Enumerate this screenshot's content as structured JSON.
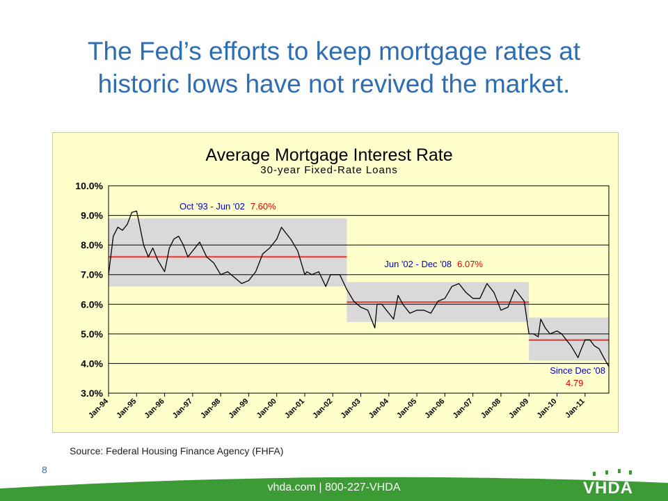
{
  "slide": {
    "title_line1": "The Fed’s efforts to keep mortgage rates at",
    "title_line2": "historic lows have not revived the market.",
    "source": "Source:  Federal Housing Finance Agency (FHFA)",
    "page_number": "8",
    "footer": "vhda.com | 800-227-VHDA",
    "logo_text": "VHDA",
    "colors": {
      "title": "#2e6db4",
      "footer_green": "#3d9b35",
      "chart_bg": "#ffffcc",
      "avg_line": "#e0504a",
      "band": "#d9d9d9",
      "series": "#000000",
      "label_blue": "#0000cc",
      "label_red": "#e00000"
    }
  },
  "chart_data": {
    "type": "line",
    "title": "Average Mortgage Interest Rate",
    "subtitle": "30-year Fixed-Rate Loans",
    "ylim": [
      3.0,
      10.0
    ],
    "y_ticks": [
      "3.0%",
      "4.0%",
      "5.0%",
      "6.0%",
      "7.0%",
      "8.0%",
      "9.0%",
      "10.0%"
    ],
    "y_tick_values": [
      3,
      4,
      5,
      6,
      7,
      8,
      9,
      10
    ],
    "x_ticks": [
      "Jan-94",
      "Jan-95",
      "Jan-96",
      "Jan-97",
      "Jan-98",
      "Jan-99",
      "Jan-00",
      "Jan-01",
      "Jan-02",
      "Jan-03",
      "Jan-04",
      "Jan-05",
      "Jan-06",
      "Jan-07",
      "Jan-08",
      "Jan-09",
      "Jan-10",
      "Jan-11"
    ],
    "x_tick_values": [
      1994,
      1995,
      1996,
      1997,
      1998,
      1999,
      2000,
      2001,
      2002,
      2003,
      2004,
      2005,
      2006,
      2007,
      2008,
      2009,
      2010,
      2011
    ],
    "xlim": [
      1994.0,
      2011.85
    ],
    "grid": "horizontal",
    "series": [
      {
        "x": [
          1994.0,
          1994.17,
          1994.33,
          1994.5,
          1994.67,
          1994.83,
          1995.0,
          1995.08,
          1995.25,
          1995.42,
          1995.58,
          1995.75,
          1996.0,
          1996.17,
          1996.33,
          1996.5,
          1996.67,
          1996.83,
          1997.0,
          1997.25,
          1997.5,
          1997.75,
          1998.0,
          1998.25,
          1998.5,
          1998.75,
          1999.0,
          1999.25,
          1999.5,
          1999.75,
          2000.0,
          2000.17,
          2000.33,
          2000.5,
          2000.75,
          2001.0,
          2001.08,
          2001.25,
          2001.5,
          2001.75,
          2001.92,
          2002.0,
          2002.25,
          2002.5,
          2002.75,
          2003.0,
          2003.25,
          2003.5,
          2003.58,
          2003.75,
          2004.0,
          2004.17,
          2004.33,
          2004.5,
          2004.75,
          2005.0,
          2005.25,
          2005.5,
          2005.75,
          2006.0,
          2006.25,
          2006.5,
          2006.75,
          2007.0,
          2007.25,
          2007.5,
          2007.75,
          2008.0,
          2008.25,
          2008.5,
          2008.67,
          2008.83,
          2009.0,
          2009.17,
          2009.33,
          2009.42,
          2009.58,
          2009.75,
          2010.0,
          2010.17,
          2010.33,
          2010.5,
          2010.75,
          2010.83,
          2011.0,
          2011.17,
          2011.33,
          2011.5,
          2011.67,
          2011.85
        ],
        "y": [
          7.0,
          8.3,
          8.6,
          8.5,
          8.7,
          9.1,
          9.15,
          8.8,
          8.0,
          7.6,
          7.9,
          7.5,
          7.1,
          7.9,
          8.2,
          8.3,
          8.0,
          7.6,
          7.8,
          8.1,
          7.6,
          7.4,
          7.0,
          7.1,
          6.9,
          6.7,
          6.8,
          7.1,
          7.7,
          7.9,
          8.2,
          8.6,
          8.4,
          8.2,
          7.8,
          7.0,
          7.1,
          7.0,
          7.1,
          6.6,
          7.0,
          7.0,
          7.0,
          6.5,
          6.1,
          5.9,
          5.8,
          5.2,
          6.0,
          6.0,
          5.7,
          5.5,
          6.3,
          6.0,
          5.7,
          5.8,
          5.8,
          5.7,
          6.1,
          6.2,
          6.6,
          6.7,
          6.4,
          6.2,
          6.2,
          6.7,
          6.4,
          5.8,
          5.9,
          6.5,
          6.3,
          6.1,
          5.0,
          5.0,
          4.9,
          5.5,
          5.2,
          5.0,
          5.1,
          5.0,
          4.8,
          4.6,
          4.2,
          4.4,
          4.8,
          4.8,
          4.6,
          4.5,
          4.2,
          3.9
        ]
      }
    ],
    "periods": [
      {
        "label": "Oct '93 - Jun '02",
        "avg_label": "7.60%",
        "start": 1994.0,
        "end": 2002.5,
        "avg": 7.6,
        "band_low": 6.6,
        "band_high": 8.9
      },
      {
        "label": "Jun '02 - Dec '08",
        "avg_label": "6.07%",
        "start": 2002.5,
        "end": 2009.0,
        "avg": 6.07,
        "band_low": 5.4,
        "band_high": 6.75
      },
      {
        "label": "Since Dec '08",
        "avg_label": "4.79",
        "start": 2009.0,
        "end": 2011.85,
        "avg": 4.79,
        "band_low": 4.1,
        "band_high": 5.55
      }
    ]
  }
}
